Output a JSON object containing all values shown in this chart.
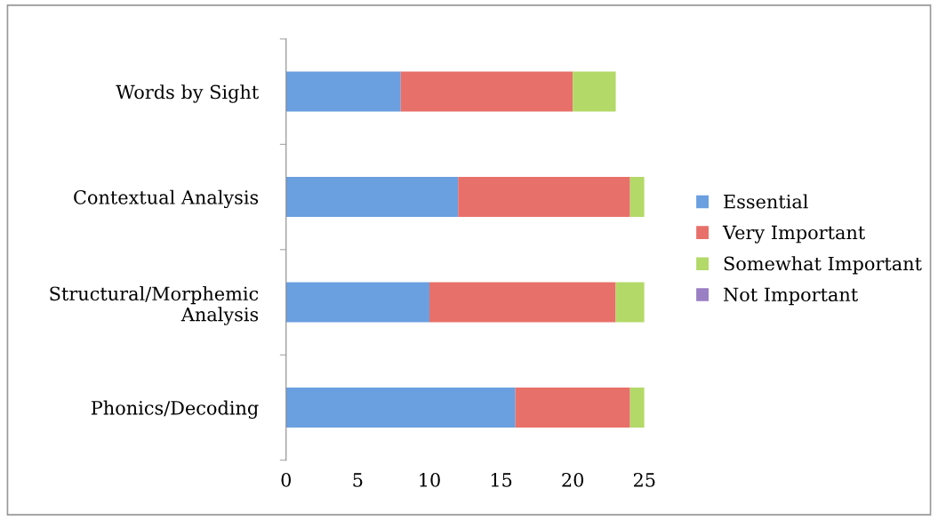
{
  "chart_data": {
    "type": "bar",
    "orientation": "horizontal",
    "stacked": true,
    "categories": [
      "Words by Sight",
      "Contextual Analysis",
      "Structural/Morphemic\nAnalysis",
      "Phonics/Decoding"
    ],
    "series": [
      {
        "name": "Essential",
        "color": "#6a9fe0",
        "values": [
          8,
          12,
          10,
          16
        ]
      },
      {
        "name": "Very Important",
        "color": "#e8706a",
        "values": [
          12,
          12,
          13,
          8
        ]
      },
      {
        "name": "Somewhat Important",
        "color": "#b3d968",
        "values": [
          3,
          1,
          2,
          1
        ]
      },
      {
        "name": "Not Important",
        "color": "#9a7fc4",
        "values": [
          0,
          0,
          0,
          0
        ]
      }
    ],
    "xlim": [
      0,
      25
    ],
    "xticks": [
      0,
      5,
      10,
      15,
      20,
      25
    ],
    "grid": false,
    "legend": "right"
  }
}
